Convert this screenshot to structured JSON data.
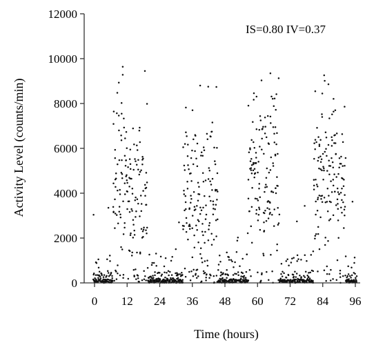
{
  "chart_data": {
    "type": "scatter",
    "xlabel": "Time (hours)",
    "ylabel": "Activity Level (counts/min)",
    "xlim": [
      -1,
      97
    ],
    "ylim": [
      0,
      12000
    ],
    "xticks": [
      "0",
      "12",
      "24",
      "36",
      "48",
      "60",
      "72",
      "84",
      "96"
    ],
    "yticks": [
      "0",
      "2000",
      "4000",
      "6000",
      "8000",
      "10000",
      "12000"
    ],
    "annotation": "IS=0.80  IV=0.37",
    "grid": false,
    "colors": {
      "points": "#111111",
      "axes": "#333333"
    },
    "activity_bouts": [
      {
        "start": 6.8,
        "end": 12.5,
        "mean": 4800,
        "spread": 1900,
        "max": 10200
      },
      {
        "start": 12.5,
        "end": 19.5,
        "mean": 3900,
        "spread": 2000,
        "max": 10300
      },
      {
        "start": 32.5,
        "end": 38.5,
        "mean": 3600,
        "spread": 2000,
        "max": 8700
      },
      {
        "start": 38.5,
        "end": 45.5,
        "mean": 3500,
        "spread": 2200,
        "max": 9400
      },
      {
        "start": 56.5,
        "end": 68.0,
        "mean": 4900,
        "spread": 1900,
        "max": 9550
      },
      {
        "start": 80.5,
        "end": 92.5,
        "mean": 4800,
        "spread": 1700,
        "max": 9550
      }
    ],
    "rest_level_max": 500
  }
}
